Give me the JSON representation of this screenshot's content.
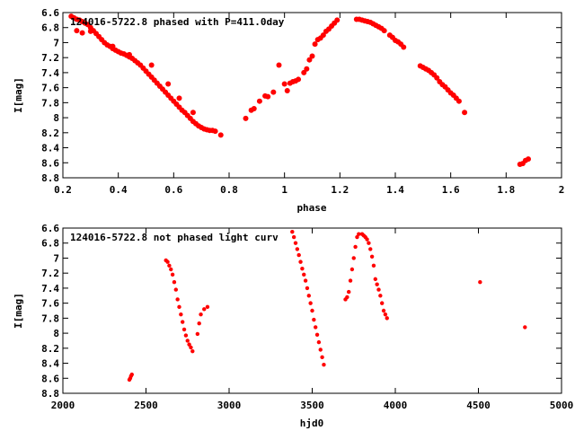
{
  "chart_data": [
    {
      "type": "scatter",
      "title": "124016-5722.8 phased with P=411.0day",
      "xlabel": "phase",
      "ylabel": "I[mag]",
      "xlim": [
        0.2,
        2.0
      ],
      "ylim": [
        6.6,
        8.8
      ],
      "y_inverted": true,
      "grid": false,
      "xticks": [
        "0.2",
        "0.4",
        "0.6",
        "0.8",
        "1",
        "1.2",
        "1.4",
        "1.6",
        "1.8",
        "2"
      ],
      "yticks": [
        "6.6",
        "6.8",
        "7",
        "7.2",
        "7.4",
        "7.6",
        "7.8",
        "8",
        "8.2",
        "8.4",
        "8.6",
        "8.8"
      ],
      "marker_color": "#ff0000",
      "series": [
        {
          "x": [
            0.23,
            0.24,
            0.25,
            0.26,
            0.27,
            0.28,
            0.29,
            0.3,
            0.31,
            0.32,
            0.33,
            0.34,
            0.35,
            0.36,
            0.37,
            0.38,
            0.39,
            0.4,
            0.41,
            0.42,
            0.43,
            0.44,
            0.45,
            0.46,
            0.47,
            0.48,
            0.49,
            0.5,
            0.51,
            0.52,
            0.53,
            0.54,
            0.55,
            0.56,
            0.57,
            0.58,
            0.59,
            0.6,
            0.61,
            0.62,
            0.63,
            0.64,
            0.65,
            0.66,
            0.67,
            0.68,
            0.69,
            0.7,
            0.71,
            0.72,
            0.73,
            0.74,
            0.75,
            0.77,
            0.25,
            0.27,
            0.3,
            0.38,
            0.44,
            0.52,
            0.58,
            0.62,
            0.67,
            0.86,
            0.88,
            0.89,
            0.91,
            0.93,
            0.94,
            0.96,
            0.98,
            1.0,
            1.01,
            1.02,
            1.03,
            1.04,
            1.05,
            1.07,
            1.08,
            1.09,
            1.1,
            1.11,
            1.12,
            1.13,
            1.14,
            1.15,
            1.16,
            1.17,
            1.18,
            1.19,
            1.26,
            1.27,
            1.28,
            1.29,
            1.3,
            1.31,
            1.32,
            1.33,
            1.34,
            1.35,
            1.36,
            1.38,
            1.39,
            1.4,
            1.41,
            1.42,
            1.43,
            1.49,
            1.5,
            1.51,
            1.52,
            1.53,
            1.54,
            1.55,
            1.56,
            1.57,
            1.58,
            1.59,
            1.6,
            1.61,
            1.62,
            1.63,
            1.65,
            1.85,
            1.86,
            1.87,
            1.88
          ],
          "y": [
            6.65,
            6.67,
            6.69,
            6.7,
            6.72,
            6.74,
            6.76,
            6.8,
            6.84,
            6.88,
            6.92,
            6.96,
            7.0,
            7.03,
            7.05,
            7.08,
            7.1,
            7.12,
            7.14,
            7.15,
            7.17,
            7.19,
            7.21,
            7.24,
            7.27,
            7.3,
            7.34,
            7.38,
            7.42,
            7.46,
            7.5,
            7.54,
            7.58,
            7.62,
            7.66,
            7.7,
            7.74,
            7.78,
            7.82,
            7.86,
            7.9,
            7.93,
            7.97,
            8.01,
            8.05,
            8.08,
            8.11,
            8.13,
            8.15,
            8.16,
            8.17,
            8.17,
            8.18,
            8.23,
            6.84,
            6.87,
            6.85,
            7.05,
            7.16,
            7.3,
            7.55,
            7.74,
            7.93,
            8.01,
            7.9,
            7.88,
            7.78,
            7.71,
            7.72,
            7.66,
            7.3,
            7.55,
            7.64,
            7.54,
            7.52,
            7.51,
            7.49,
            7.4,
            7.35,
            7.23,
            7.18,
            7.02,
            6.96,
            6.94,
            6.9,
            6.85,
            6.82,
            6.78,
            6.74,
            6.7,
            6.69,
            6.69,
            6.7,
            6.71,
            6.72,
            6.73,
            6.75,
            6.77,
            6.79,
            6.81,
            6.84,
            6.9,
            6.93,
            6.97,
            6.99,
            7.02,
            7.06,
            7.31,
            7.33,
            7.35,
            7.37,
            7.4,
            7.43,
            7.47,
            7.52,
            7.56,
            7.59,
            7.63,
            7.67,
            7.7,
            7.74,
            7.78,
            7.93,
            8.62,
            8.61,
            8.57,
            8.55
          ]
        }
      ]
    },
    {
      "type": "scatter",
      "title": "124016-5722.8 not phased light curv",
      "xlabel": "hjd0",
      "ylabel": "I[mag]",
      "xlim": [
        2000,
        5000
      ],
      "ylim": [
        6.6,
        8.8
      ],
      "y_inverted": true,
      "grid": false,
      "xticks": [
        "2000",
        "2500",
        "3000",
        "3500",
        "4000",
        "4500",
        "5000"
      ],
      "yticks": [
        "6.6",
        "6.8",
        "7",
        "7.2",
        "7.4",
        "7.6",
        "7.8",
        "8",
        "8.2",
        "8.4",
        "8.6",
        "8.8"
      ],
      "marker_color": "#ff0000",
      "series": [
        {
          "x": [
            2400,
            2405,
            2410,
            2415,
            2620,
            2630,
            2640,
            2650,
            2660,
            2670,
            2680,
            2690,
            2700,
            2710,
            2720,
            2730,
            2740,
            2750,
            2760,
            2770,
            2780,
            2810,
            2820,
            2830,
            2850,
            2870,
            3380,
            3390,
            3400,
            3410,
            3420,
            3430,
            3440,
            3450,
            3460,
            3470,
            3480,
            3490,
            3500,
            3510,
            3520,
            3530,
            3540,
            3550,
            3560,
            3570,
            3700,
            3710,
            3720,
            3730,
            3740,
            3750,
            3760,
            3770,
            3780,
            3800,
            3810,
            3820,
            3830,
            3840,
            3850,
            3860,
            3870,
            3880,
            3890,
            3900,
            3910,
            3920,
            3930,
            3940,
            3950,
            4510,
            4780
          ],
          "y": [
            8.62,
            8.6,
            8.57,
            8.55,
            7.03,
            7.05,
            7.1,
            7.15,
            7.22,
            7.32,
            7.42,
            7.55,
            7.65,
            7.75,
            7.85,
            7.95,
            8.03,
            8.1,
            8.15,
            8.19,
            8.24,
            8.01,
            7.87,
            7.75,
            7.68,
            7.65,
            6.65,
            6.72,
            6.8,
            6.88,
            6.96,
            7.05,
            7.14,
            7.22,
            7.3,
            7.4,
            7.5,
            7.6,
            7.7,
            7.82,
            7.92,
            8.02,
            8.12,
            8.22,
            8.32,
            8.42,
            7.55,
            7.52,
            7.45,
            7.3,
            7.15,
            7.0,
            6.85,
            6.72,
            6.68,
            6.68,
            6.7,
            6.72,
            6.75,
            6.8,
            6.88,
            6.98,
            7.1,
            7.28,
            7.35,
            7.42,
            7.5,
            7.6,
            7.7,
            7.75,
            7.8,
            7.32,
            7.92
          ]
        }
      ]
    }
  ]
}
